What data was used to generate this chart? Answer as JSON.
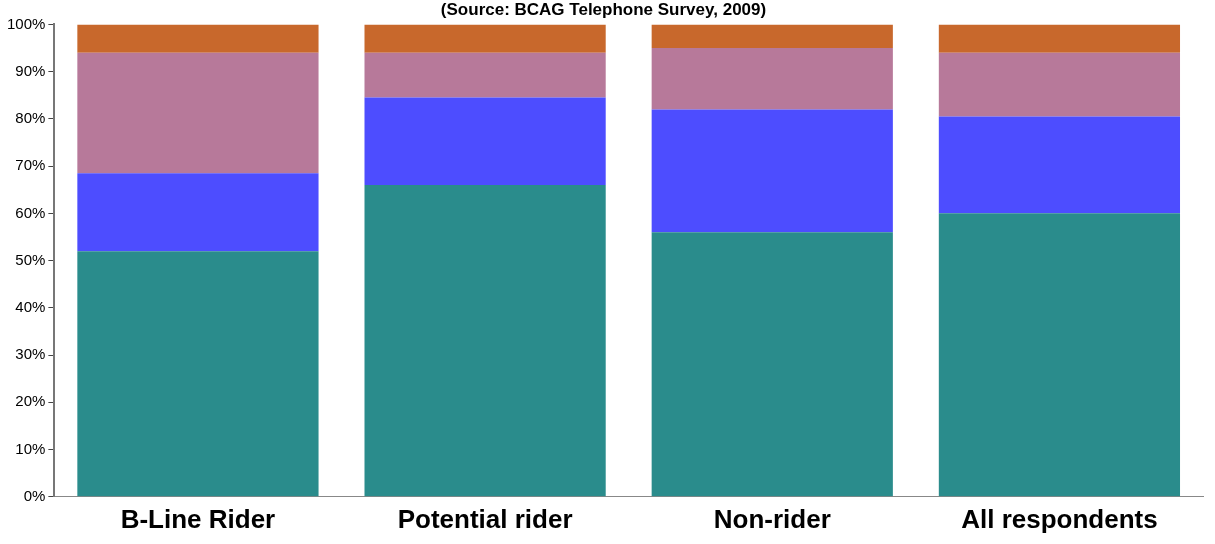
{
  "chart_data": {
    "type": "bar",
    "title": "(Source: BCAG Telephone Survey, 2009)",
    "stacked": true,
    "categories": [
      "B-Line Rider",
      "Potential rider",
      "Non-rider",
      "All respondents"
    ],
    "series": [
      {
        "color": "#2a8c8c",
        "values": [
          52,
          66,
          56,
          60
        ]
      },
      {
        "color": "#4d4dff",
        "values": [
          16.5,
          18.5,
          26,
          20.5
        ]
      },
      {
        "color": "#b7799a",
        "values": [
          25.5,
          9.5,
          13,
          13.5
        ]
      },
      {
        "color": "#c8682c",
        "values": [
          6,
          6,
          5,
          6
        ]
      }
    ],
    "ylim": [
      0,
      100
    ],
    "yticks": [
      {
        "value": 0,
        "label": "0%"
      },
      {
        "value": 10,
        "label": "10%"
      },
      {
        "value": 20,
        "label": "20%"
      },
      {
        "value": 30,
        "label": "30%"
      },
      {
        "value": 40,
        "label": "40%"
      },
      {
        "value": 50,
        "label": "50%"
      },
      {
        "value": 60,
        "label": "60%"
      },
      {
        "value": 70,
        "label": "70%"
      },
      {
        "value": 80,
        "label": "80%"
      },
      {
        "value": 90,
        "label": "90%"
      },
      {
        "value": 100,
        "label": "100%"
      }
    ],
    "grid": false,
    "legend": false
  }
}
